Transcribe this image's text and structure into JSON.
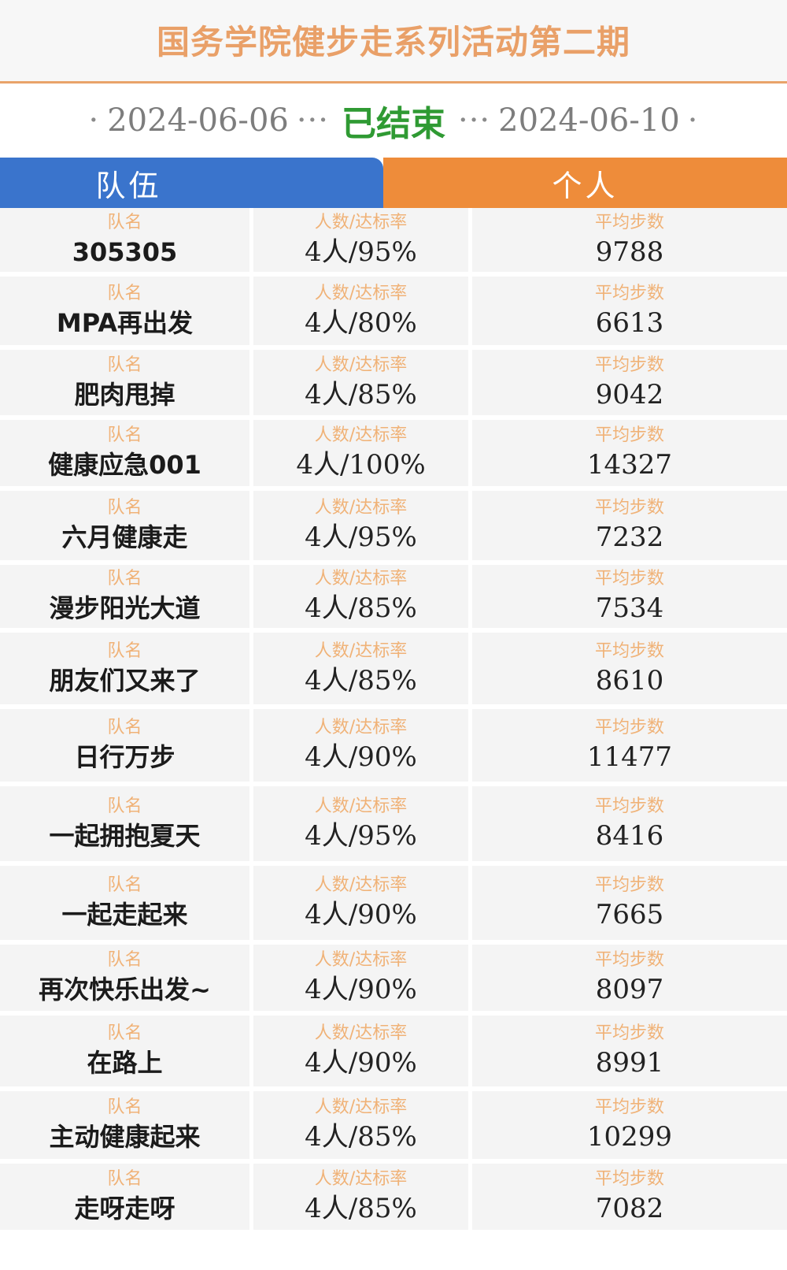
{
  "header": {
    "title": "国务学院健步走系列活动第二期"
  },
  "dates": {
    "start": "2024-06-06",
    "status": "已结束",
    "end": "2024-06-10",
    "dot": "·",
    "ellipsis": "···"
  },
  "tabs": {
    "team": "队伍",
    "personal": "个人"
  },
  "labels": {
    "team_name": "队名",
    "members_rate": "人数/达标率",
    "avg_steps": "平均步数"
  },
  "teams": [
    {
      "name": "305305",
      "members_rate": "4人/95%",
      "avg_steps": "9788"
    },
    {
      "name": "MPA再出发",
      "members_rate": "4人/80%",
      "avg_steps": "6613"
    },
    {
      "name": "肥肉甩掉",
      "members_rate": "4人/85%",
      "avg_steps": "9042"
    },
    {
      "name": "健康应急001",
      "members_rate": "4人/100%",
      "avg_steps": "14327"
    },
    {
      "name": "六月健康走",
      "members_rate": "4人/95%",
      "avg_steps": "7232"
    },
    {
      "name": "漫步阳光大道",
      "members_rate": "4人/85%",
      "avg_steps": "7534"
    },
    {
      "name": "朋友们又来了",
      "members_rate": "4人/85%",
      "avg_steps": "8610"
    },
    {
      "name": "日行万步",
      "members_rate": "4人/90%",
      "avg_steps": "11477"
    },
    {
      "name": "一起拥抱夏天",
      "members_rate": "4人/95%",
      "avg_steps": "8416"
    },
    {
      "name": "一起走起来",
      "members_rate": "4人/90%",
      "avg_steps": "7665"
    },
    {
      "name": "再次快乐出发~",
      "members_rate": "4人/90%",
      "avg_steps": "8097"
    },
    {
      "name": "在路上",
      "members_rate": "4人/90%",
      "avg_steps": "8991"
    },
    {
      "name": "主动健康起来",
      "members_rate": "4人/85%",
      "avg_steps": "10299"
    },
    {
      "name": "走呀走呀",
      "members_rate": "4人/85%",
      "avg_steps": "7082"
    }
  ],
  "colors": {
    "title": "#e9a068",
    "status": "#2f9a33",
    "tab_team": "#3a74cc",
    "tab_personal": "#ee8c3a",
    "label": "#f0b277"
  }
}
